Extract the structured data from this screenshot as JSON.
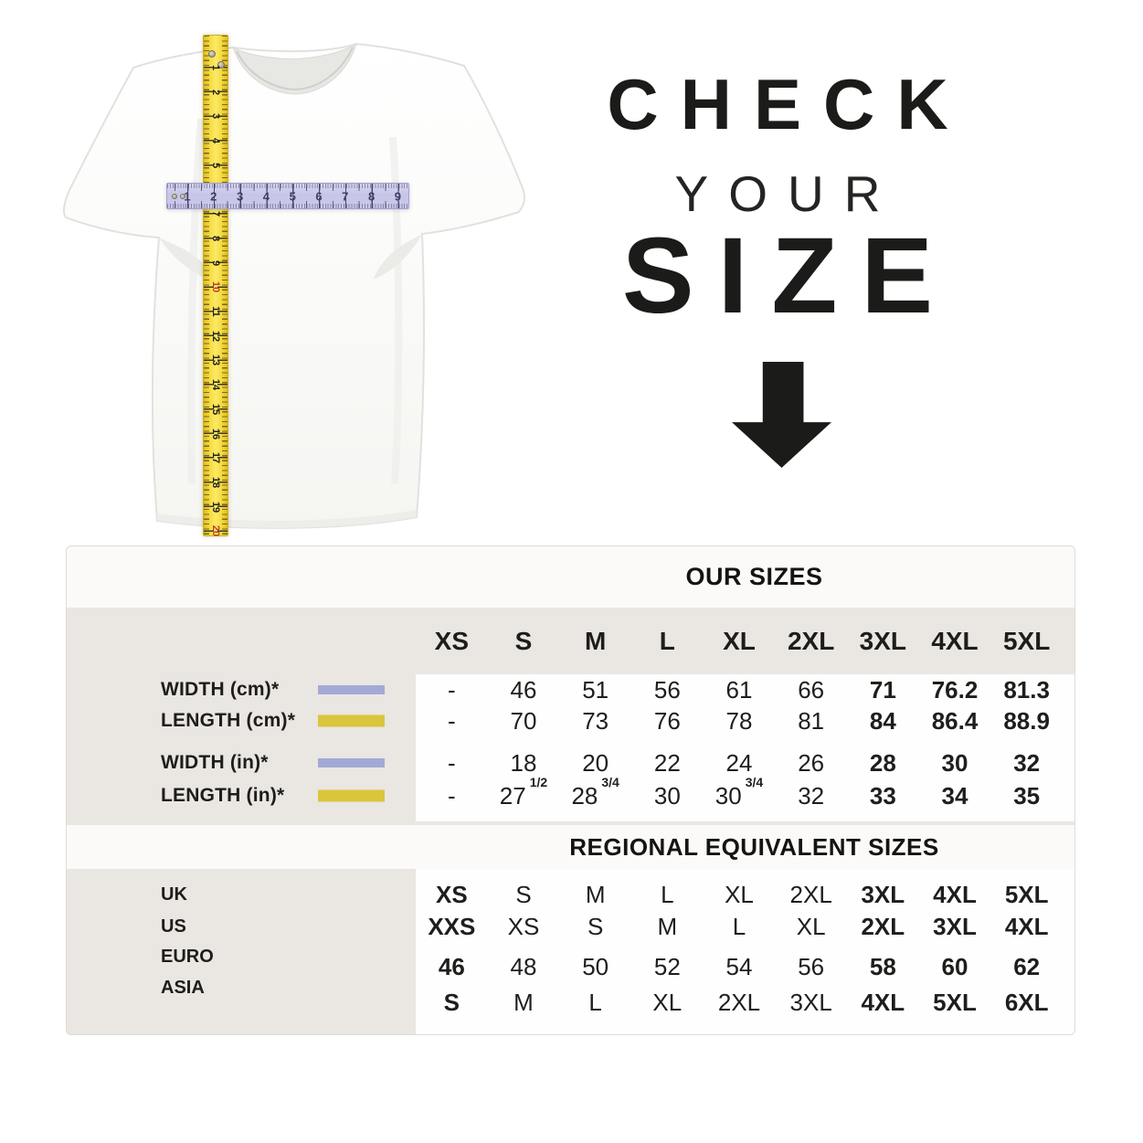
{
  "hero": {
    "line1": "CHECK",
    "line2": "YOUR",
    "line3": "SIZE"
  },
  "chart_data": [
    {
      "type": "table",
      "title": "OUR SIZES",
      "columns": [
        "XS",
        "S",
        "M",
        "L",
        "XL",
        "2XL",
        "3XL",
        "4XL",
        "5XL"
      ],
      "rows": [
        {
          "label": "WIDTH (cm)*",
          "legend": "lavender-bar",
          "values": [
            "-",
            "46",
            "51",
            "56",
            "61",
            "66",
            "71",
            "76.2",
            "81.3"
          ]
        },
        {
          "label": "LENGTH (cm)*",
          "legend": "yellow-bar",
          "values": [
            "-",
            "70",
            "73",
            "76",
            "78",
            "81",
            "84",
            "86.4",
            "88.9"
          ]
        },
        {
          "label": "WIDTH (in)*",
          "legend": "lavender-bar",
          "values": [
            "-",
            "18",
            "20",
            "22",
            "24",
            "26",
            "28",
            "30",
            "32"
          ]
        },
        {
          "label": "LENGTH (in)*",
          "legend": "yellow-bar",
          "values": [
            "-",
            "27",
            "28",
            "30",
            "30",
            "32",
            "33",
            "34",
            "35"
          ],
          "fractions": {
            "1": "1/2",
            "2": "3/4",
            "4": "3/4"
          }
        }
      ]
    },
    {
      "type": "table",
      "title": "REGIONAL EQUIVALENT SIZES",
      "rows": [
        {
          "label": "UK",
          "values": [
            "XS",
            "S",
            "M",
            "L",
            "XL",
            "2XL",
            "3XL",
            "4XL",
            "5XL"
          ]
        },
        {
          "label": "US",
          "values": [
            "XXS",
            "XS",
            "S",
            "M",
            "L",
            "XL",
            "2XL",
            "3XL",
            "4XL"
          ]
        },
        {
          "label": "EURO",
          "values": [
            "46",
            "48",
            "50",
            "52",
            "54",
            "56",
            "58",
            "60",
            "62"
          ]
        },
        {
          "label": "ASIA",
          "values": [
            "S",
            "M",
            "L",
            "XL",
            "2XL",
            "3XL",
            "4XL",
            "5XL",
            "6XL"
          ]
        }
      ]
    }
  ],
  "rulers": {
    "vertical_tape_numbers": [
      "1",
      "2",
      "3",
      "4",
      "5",
      "6",
      "7",
      "8",
      "9",
      "10",
      "11",
      "12",
      "13",
      "14",
      "15",
      "16",
      "17",
      "18",
      "19",
      "20"
    ],
    "vertical_red_numbers": [
      "10",
      "20"
    ],
    "horizontal_ruler_numbers": [
      "1",
      "2",
      "3",
      "4",
      "5",
      "6",
      "7",
      "8",
      "9"
    ]
  },
  "colors": {
    "lavender_bar": "#a3a9d5",
    "yellow_bar": "#d9c63c",
    "red_number": "#c3392b",
    "table_beige": "#eae6e2",
    "table_band": "#fbfaf8",
    "text_dark": "#1d1d1b"
  }
}
